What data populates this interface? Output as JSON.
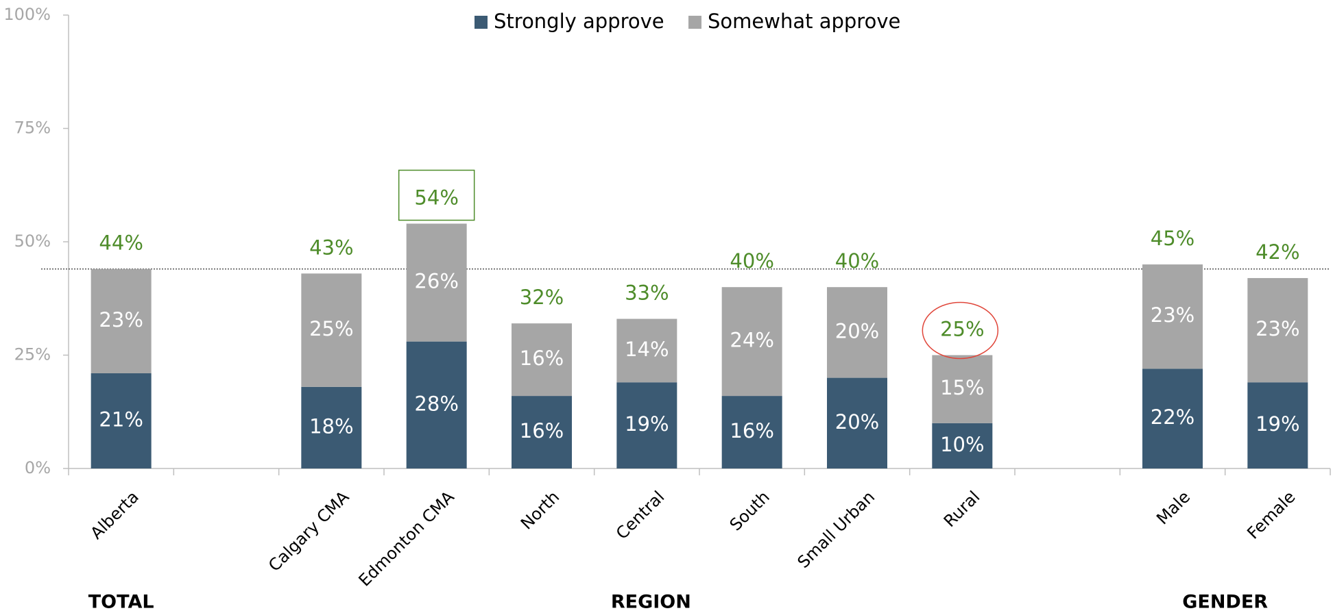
{
  "chart_data": {
    "type": "stacked_bar",
    "categories": [
      "Alberta",
      null,
      "Calgary CMA",
      "Edmonton CMA",
      "North",
      "Central",
      "South",
      "Small Urban",
      "Rural",
      null,
      "Male",
      "Female"
    ],
    "series": [
      {
        "name": "Strongly approve",
        "color": "#3b5a73",
        "values": [
          21,
          null,
          18,
          28,
          16,
          19,
          16,
          20,
          10,
          null,
          22,
          19
        ],
        "value_labels": [
          "21%",
          null,
          "18%",
          "28%",
          "16%",
          "19%",
          "16%",
          "20%",
          "10%",
          null,
          "22%",
          "19%"
        ]
      },
      {
        "name": "Somewhat approve",
        "color": "#a6a6a6",
        "values": [
          23,
          null,
          25,
          26,
          16,
          14,
          24,
          20,
          15,
          null,
          23,
          23
        ],
        "value_labels": [
          "23%",
          null,
          "25%",
          "26%",
          "16%",
          "14%",
          "24%",
          "20%",
          "15%",
          null,
          "23%",
          "23%"
        ]
      }
    ],
    "totals": [
      44,
      null,
      43,
      54,
      32,
      33,
      40,
      40,
      25,
      null,
      45,
      42
    ],
    "total_labels": [
      "44%",
      null,
      "43%",
      "54%",
      "32%",
      "33%",
      "40%",
      "40%",
      "25%",
      null,
      "45%",
      "42%"
    ],
    "total_color": "#4e8c2a",
    "reference_line": 44,
    "groups": [
      "TOTAL",
      "REGION",
      "GENDER"
    ],
    "ylim": [
      0,
      100
    ],
    "yticks": [
      {
        "value": 0,
        "label": "0%"
      },
      {
        "value": 25,
        "label": "25%"
      },
      {
        "value": 50,
        "label": "50%"
      },
      {
        "value": 75,
        "label": "75%"
      },
      {
        "value": 100,
        "label": "100%"
      }
    ],
    "legend": "top"
  }
}
